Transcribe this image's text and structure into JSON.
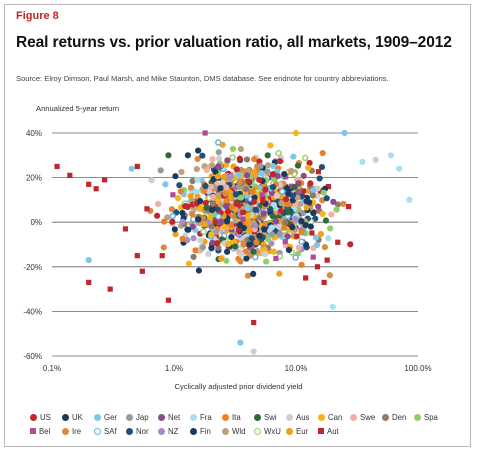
{
  "figure_label": "Figure 8",
  "title": "Real returns vs. prior valuation ratio, all markets, 1909–2012",
  "source": "Source: Elroy Dimson, Paul Marsh, and Mike Staunton, DMS database. See endnote for country abbreviations.",
  "chart_data": {
    "type": "scatter",
    "title": "Real returns vs. prior valuation ratio, all markets, 1909–2012",
    "xlabel": "Cyclically adjusted prior dividend yield",
    "ylabel": "Annualized 5-year return",
    "x_scale": "log",
    "xlim": [
      0.1,
      100
    ],
    "ylim": [
      -60,
      40
    ],
    "x_ticks": [
      0.1,
      1,
      10,
      100
    ],
    "x_tick_labels": [
      "0.1%",
      "1.0%",
      "10.0%",
      "100.0%"
    ],
    "y_ticks": [
      40,
      20,
      0,
      -20,
      -40,
      -60
    ],
    "y_tick_labels": [
      "40%",
      "20%",
      "0%",
      "-20%",
      "-40%",
      "-60%"
    ],
    "grid": "horizontal",
    "legend_placement": "bottom",
    "series": [
      {
        "name": "US",
        "color": "#c0272d",
        "marker": "circle"
      },
      {
        "name": "UK",
        "color": "#1b3a5c",
        "marker": "circle"
      },
      {
        "name": "Ger",
        "color": "#7fc7e8",
        "marker": "circle"
      },
      {
        "name": "Jap",
        "color": "#9a9a9a",
        "marker": "circle"
      },
      {
        "name": "Net",
        "color": "#8a4a8c",
        "marker": "circle"
      },
      {
        "name": "Fra",
        "color": "#a9dff3",
        "marker": "circle"
      },
      {
        "name": "Ita",
        "color": "#e8822a",
        "marker": "circle"
      },
      {
        "name": "Swi",
        "color": "#2f6b3a",
        "marker": "circle"
      },
      {
        "name": "Aus",
        "color": "#cfcfcf",
        "marker": "circle"
      },
      {
        "name": "Can",
        "color": "#f5b41a",
        "marker": "circle"
      },
      {
        "name": "Swe",
        "color": "#efb1a6",
        "marker": "circle"
      },
      {
        "name": "Den",
        "color": "#8c7b6b",
        "marker": "circle"
      },
      {
        "name": "Spa",
        "color": "#8fcf6a",
        "marker": "circle"
      },
      {
        "name": "Bel",
        "color": "#b04a9a",
        "marker": "square"
      },
      {
        "name": "Ire",
        "color": "#d98a3a",
        "marker": "circle"
      },
      {
        "name": "SAf",
        "color": "#6ab0d8",
        "marker": "ring"
      },
      {
        "name": "Nor",
        "color": "#1f4f7a",
        "marker": "circle"
      },
      {
        "name": "NZ",
        "color": "#a58cc8",
        "marker": "circle"
      },
      {
        "name": "Fin",
        "color": "#173a63",
        "marker": "circle"
      },
      {
        "name": "Wld",
        "color": "#b9a27c",
        "marker": "circle"
      },
      {
        "name": "WxU",
        "color": "#9ad06a",
        "marker": "ring"
      },
      {
        "name": "Eur",
        "color": "#f0a020",
        "marker": "circle"
      },
      {
        "name": "Aut",
        "color": "#c0272d",
        "marker": "square"
      }
    ],
    "approximate_points_note_free": true,
    "outliers": [
      {
        "series": "Aut",
        "x": 0.11,
        "y": 25
      },
      {
        "series": "Aut",
        "x": 0.14,
        "y": 21
      },
      {
        "series": "Aut",
        "x": 0.2,
        "y": 17
      },
      {
        "series": "Aut",
        "x": 0.23,
        "y": 15
      },
      {
        "series": "Aut",
        "x": 0.27,
        "y": 19
      },
      {
        "series": "Aut",
        "x": 0.2,
        "y": -27
      },
      {
        "series": "Aut",
        "x": 0.3,
        "y": -30
      },
      {
        "series": "Aut",
        "x": 0.4,
        "y": -3
      },
      {
        "series": "Aut",
        "x": 0.5,
        "y": -15
      },
      {
        "series": "Aut",
        "x": 0.55,
        "y": -22
      },
      {
        "series": "Aut",
        "x": 0.5,
        "y": 25
      },
      {
        "series": "Aut",
        "x": 0.6,
        "y": 6
      },
      {
        "series": "Aut",
        "x": 0.9,
        "y": -35
      },
      {
        "series": "Aut",
        "x": 0.8,
        "y": -15
      },
      {
        "series": "Aut",
        "x": 4.5,
        "y": -45
      },
      {
        "series": "Aut",
        "x": 12,
        "y": -25
      },
      {
        "series": "Aut",
        "x": 18,
        "y": -17
      },
      {
        "series": "Aut",
        "x": 22,
        "y": -9
      },
      {
        "series": "Aut",
        "x": 17,
        "y": -27
      },
      {
        "series": "Aut",
        "x": 27,
        "y": 7
      },
      {
        "series": "Aut",
        "x": 15,
        "y": -20
      },
      {
        "series": "Ger",
        "x": 0.2,
        "y": -17
      },
      {
        "series": "Ger",
        "x": 0.45,
        "y": 24
      },
      {
        "series": "Ger",
        "x": 25,
        "y": 40
      },
      {
        "series": "Fra",
        "x": 60,
        "y": 30
      },
      {
        "series": "Aus",
        "x": 45,
        "y": 28
      },
      {
        "series": "Fra",
        "x": 70,
        "y": 24
      },
      {
        "series": "Fra",
        "x": 85,
        "y": 10
      },
      {
        "series": "Fra",
        "x": 35,
        "y": 27
      },
      {
        "series": "Ger",
        "x": 3.5,
        "y": -54
      },
      {
        "series": "Aus",
        "x": 4.5,
        "y": -58
      },
      {
        "series": "Fra",
        "x": 20,
        "y": -38
      },
      {
        "series": "Bel",
        "x": 1.8,
        "y": 40
      },
      {
        "series": "Can",
        "x": 10,
        "y": 40
      },
      {
        "series": "UK",
        "x": 1.3,
        "y": 30
      },
      {
        "series": "Ger",
        "x": 0.85,
        "y": 17
      },
      {
        "series": "Swi",
        "x": 0.9,
        "y": 30
      }
    ]
  },
  "legend_rows": [
    [
      "US",
      "UK",
      "Ger",
      "Jap",
      "Net",
      "Fra",
      "Ita",
      "Swi",
      "Aus",
      "Can",
      "Swe",
      "Den",
      "Spa"
    ],
    [
      "Bel",
      "Ire",
      "SAf",
      "Nor",
      "NZ",
      "Fin",
      "Wld",
      "WxU",
      "Eur",
      "Aut"
    ]
  ]
}
